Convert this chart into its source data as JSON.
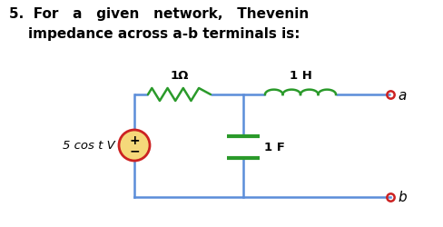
{
  "wire_color": "#5B8DD9",
  "resistor_color": "#2A9A2A",
  "inductor_color": "#2A9A2A",
  "capacitor_color": "#2A9A2A",
  "source_edge_color": "#CC2222",
  "source_fill": "#F5D87A",
  "terminal_color": "#CC2222",
  "text_color": "#000000",
  "background": "#FFFFFF",
  "label_resistor": "1Ω",
  "label_inductor": "1 H",
  "label_capacitor": "1 F",
  "label_source": "5 cos t V",
  "label_a": "a",
  "label_b": "b",
  "title_line1": "5.  For   a   given   network,   Thevenin",
  "title_line2": "    impedance across a-b terminals is:"
}
